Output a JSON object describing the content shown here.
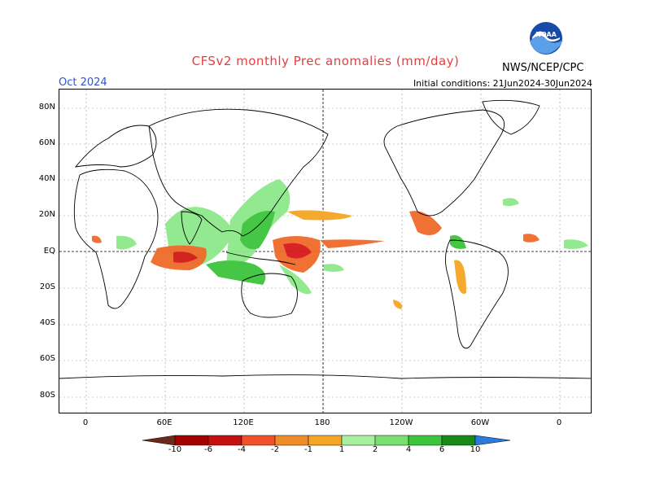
{
  "header": {
    "title": "CFSv2 monthly Prec anomalies (mm/day)",
    "month": "Oct 2024",
    "initial_conditions": "Initial conditions: 21Jun2024-30Jun2024",
    "agency": "NWS/NCEP/CPC",
    "logo_text": "NOAA"
  },
  "axes": {
    "lat_labels": [
      "80N",
      "60N",
      "40N",
      "20N",
      "EQ",
      "20S",
      "40S",
      "60S",
      "80S"
    ],
    "lon_labels": [
      "0",
      "60E",
      "120E",
      "180",
      "120W",
      "60W",
      "0"
    ]
  },
  "colorbar": {
    "labels": [
      "-10",
      "-6",
      "-4",
      "-2",
      "-1",
      "1",
      "2",
      "4",
      "6",
      "10"
    ],
    "dry_colors": [
      "#6b2a1a",
      "#a50000",
      "#d7191c",
      "#f0502a",
      "#f08b2a",
      "#f5a623"
    ],
    "wet_colors": [
      "#a8f0a0",
      "#78e070",
      "#3cc43c",
      "#22a822",
      "#178a17",
      "#2a7ae0"
    ]
  },
  "anomalies": {
    "dry_color_light": "#f5a623",
    "dry_color_mid": "#f06a2a",
    "dry_color_strong": "#d7191c",
    "wet_color_light": "#8ee88a",
    "wet_color_mid": "#3cc43c"
  }
}
